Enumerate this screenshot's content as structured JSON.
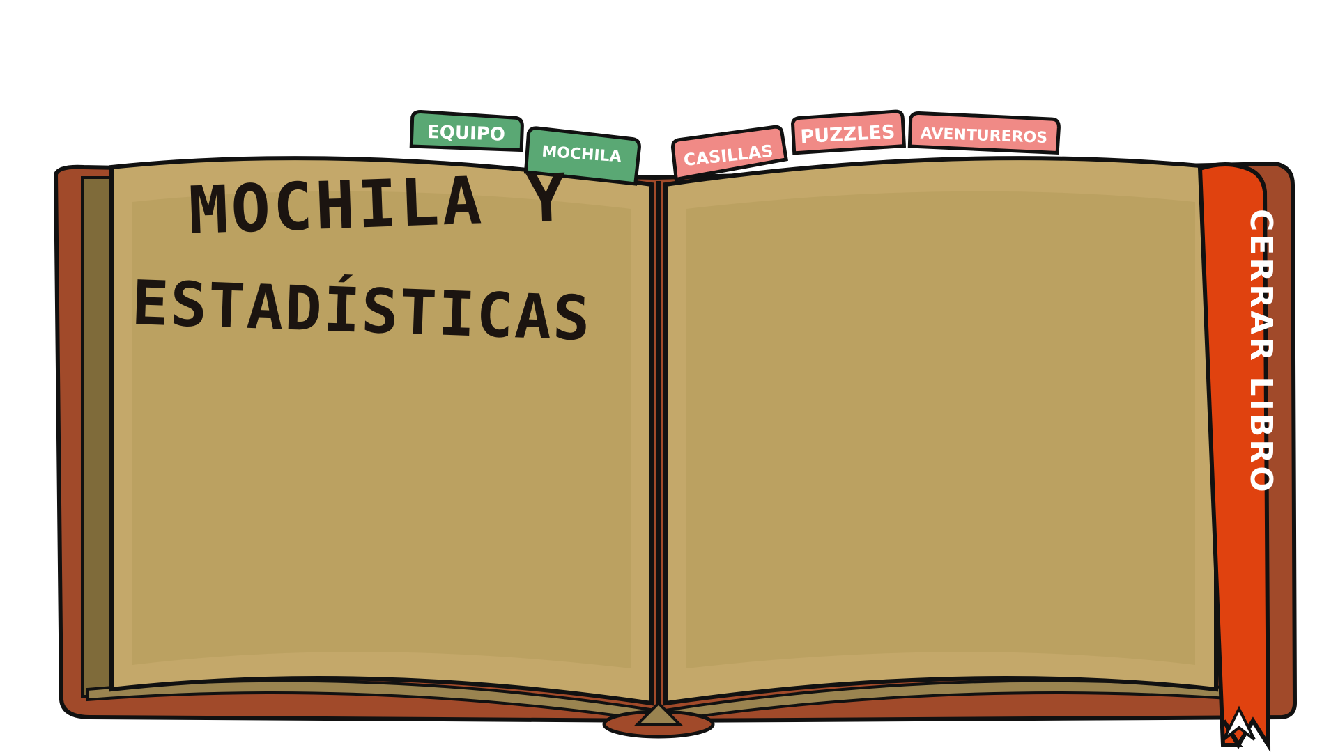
{
  "tabs": {
    "left": [
      {
        "id": "equipo",
        "label": "EQUIPO",
        "color": "#5aa874"
      },
      {
        "id": "mochila",
        "label": "MOCHILA",
        "color": "#5aa874"
      }
    ],
    "right": [
      {
        "id": "casillas",
        "label": "CASILLAS",
        "color": "#f08a86"
      },
      {
        "id": "puzzles",
        "label": "PUZZLES",
        "color": "#f08a86"
      },
      {
        "id": "aventureros",
        "label": "AVENTUREROS",
        "color": "#f08a86"
      }
    ]
  },
  "page_title": {
    "line1": "MOCHILA Y",
    "line2": "ESTADÍSTICAS"
  },
  "close_ribbon": {
    "label": "CERRAR LIBRO",
    "color": "#e0420f"
  },
  "colors": {
    "page": "#c4a86a",
    "page_inner": "#b59c5c",
    "cover": "#a14a2a",
    "outline": "#111111"
  }
}
